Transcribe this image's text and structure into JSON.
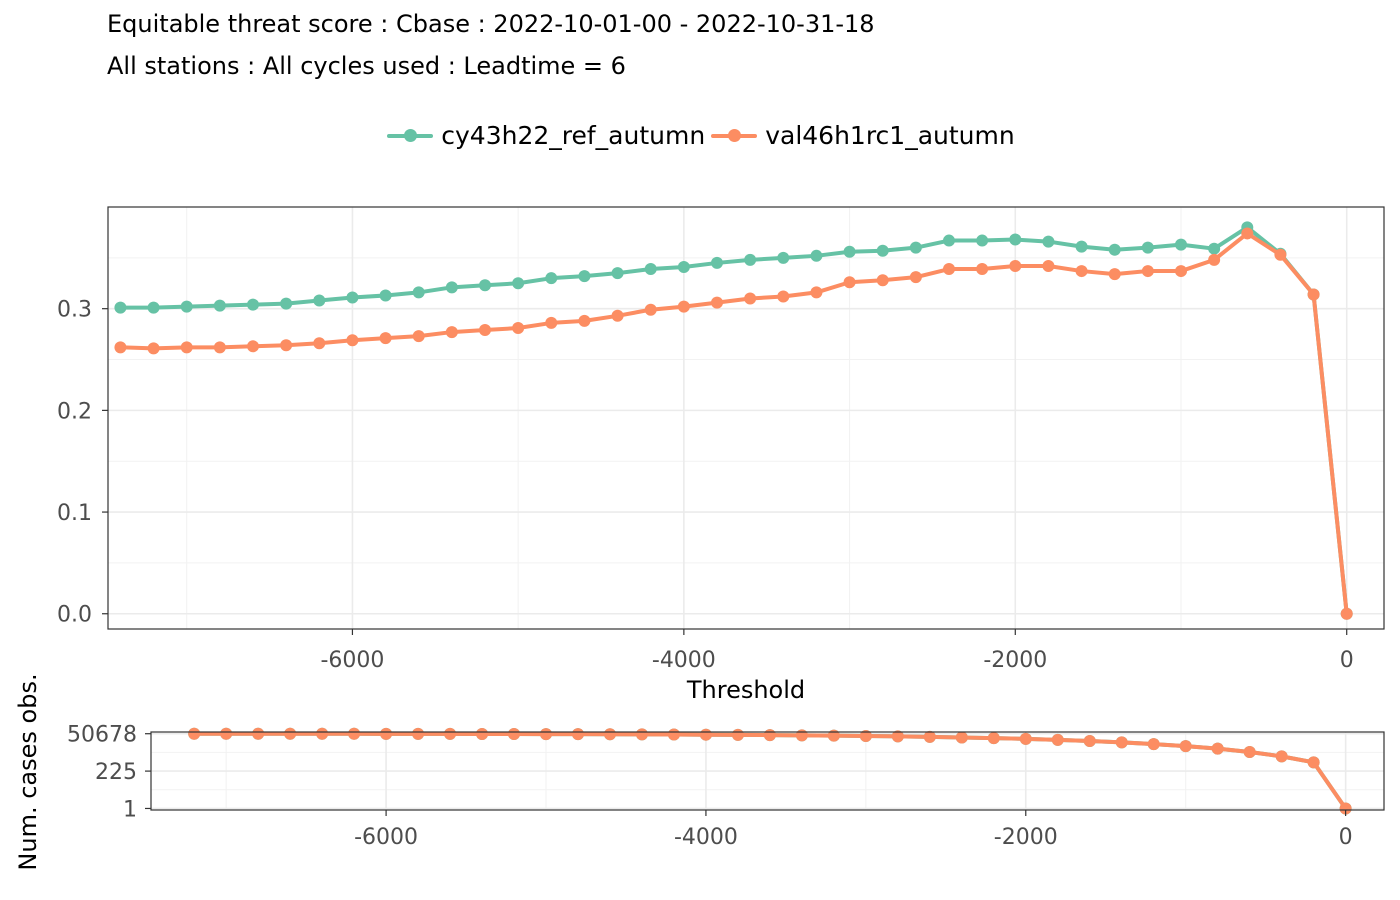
{
  "title": "Equitable threat score : Cbase : 2022-10-01-00 - 2022-10-31-18",
  "subtitle": "All stations : All cycles used : Leadtime = 6",
  "colors": {
    "cy43h22_ref_autumn": "#66c2a5",
    "val46h1rc1_autumn": "#fc8d62"
  },
  "chart_data": [
    {
      "type": "line",
      "xlabel": "Threshold",
      "ylabel": "",
      "xlim": [
        -7475,
        225
      ],
      "ylim": [
        -0.015,
        0.4
      ],
      "x_ticks": [
        -6000,
        -4000,
        -2000,
        0
      ],
      "x_tick_labels": [
        "-6000",
        "-4000",
        "-2000",
        "0"
      ],
      "y_ticks": [
        0.0,
        0.1,
        0.2,
        0.3
      ],
      "y_tick_labels": [
        "0.0",
        "0.1",
        "0.2",
        "0.3"
      ],
      "grid": true,
      "legend": "top",
      "x": [
        -7400,
        -7200,
        -7000,
        -6800,
        -6600,
        -6400,
        -6200,
        -6000,
        -5800,
        -5600,
        -5400,
        -5200,
        -5000,
        -4800,
        -4600,
        -4400,
        -4200,
        -4000,
        -3800,
        -3600,
        -3400,
        -3200,
        -3000,
        -2800,
        -2600,
        -2400,
        -2200,
        -2000,
        -1800,
        -1600,
        -1400,
        -1200,
        -1000,
        -800,
        -600,
        -400,
        -200,
        0
      ],
      "series": [
        {
          "name": "cy43h22_ref_autumn",
          "values": [
            0.301,
            0.301,
            0.302,
            0.303,
            0.304,
            0.305,
            0.308,
            0.311,
            0.313,
            0.316,
            0.321,
            0.323,
            0.325,
            0.33,
            0.332,
            0.335,
            0.339,
            0.341,
            0.345,
            0.348,
            0.35,
            0.352,
            0.356,
            0.357,
            0.36,
            0.367,
            0.367,
            0.368,
            0.366,
            0.361,
            0.358,
            0.36,
            0.363,
            0.359,
            0.38,
            0.354,
            0.314,
            0.0
          ]
        },
        {
          "name": "val46h1rc1_autumn",
          "values": [
            0.262,
            0.261,
            0.262,
            0.262,
            0.263,
            0.264,
            0.266,
            0.269,
            0.271,
            0.273,
            0.277,
            0.279,
            0.281,
            0.286,
            0.288,
            0.293,
            0.299,
            0.302,
            0.306,
            0.31,
            0.312,
            0.316,
            0.326,
            0.328,
            0.331,
            0.339,
            0.339,
            0.342,
            0.342,
            0.337,
            0.334,
            0.337,
            0.337,
            0.348,
            0.374,
            0.353,
            0.314,
            0.0
          ]
        }
      ]
    },
    {
      "type": "line",
      "xlabel": "",
      "ylabel": "Num. cases obs.",
      "y_scale": "log",
      "xlim": [
        -7470,
        240
      ],
      "ylim": [
        0.8,
        65000
      ],
      "x_ticks": [
        -6000,
        -4000,
        -2000,
        0
      ],
      "x_tick_labels": [
        "-6000",
        "-4000",
        "-2000",
        "0"
      ],
      "y_ticks": [
        1,
        225,
        50678
      ],
      "y_tick_labels": [
        "1",
        "225",
        "50678"
      ],
      "grid": true,
      "x": [
        -7200,
        -7000,
        -6800,
        -6600,
        -6400,
        -6200,
        -6000,
        -5800,
        -5600,
        -5400,
        -5200,
        -5000,
        -4800,
        -4600,
        -4400,
        -4200,
        -4000,
        -3800,
        -3600,
        -3400,
        -3200,
        -3000,
        -2800,
        -2600,
        -2400,
        -2200,
        -2000,
        -1800,
        -1600,
        -1400,
        -1200,
        -1000,
        -800,
        -600,
        -400,
        -200,
        0
      ],
      "series": [
        {
          "name": "cy43h22_ref_autumn",
          "values": [
            50678,
            50600,
            50500,
            50400,
            50300,
            50100,
            49900,
            49600,
            49300,
            48900,
            48500,
            48000,
            47400,
            46700,
            45900,
            45000,
            44000,
            42800,
            41500,
            40000,
            38300,
            36400,
            34300,
            32000,
            29500,
            26800,
            23900,
            20800,
            17600,
            14400,
            11300,
            8400,
            5800,
            3600,
            1900,
            800,
            1
          ]
        },
        {
          "name": "val46h1rc1_autumn",
          "values": [
            50678,
            50600,
            50500,
            50400,
            50300,
            50100,
            49900,
            49600,
            49300,
            48900,
            48500,
            48000,
            47400,
            46700,
            45900,
            45000,
            44000,
            42800,
            41500,
            40000,
            38300,
            36400,
            34300,
            32000,
            29500,
            26800,
            23900,
            20800,
            17600,
            14400,
            11300,
            8400,
            5800,
            3600,
            1900,
            800,
            1
          ]
        }
      ]
    }
  ]
}
